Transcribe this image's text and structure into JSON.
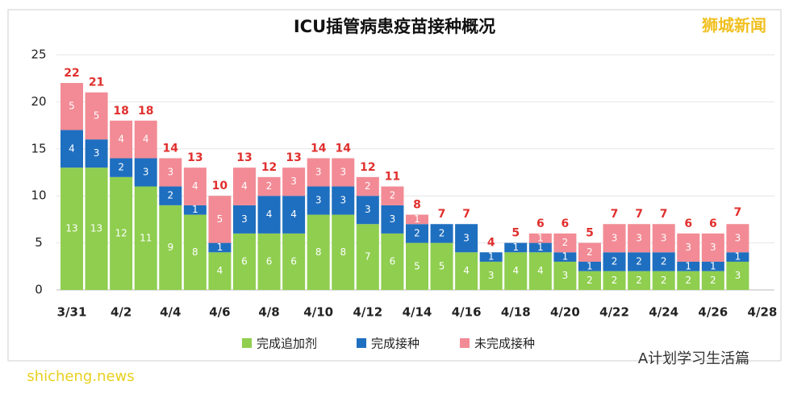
{
  "chart_data": {
    "type": "stacked-bar",
    "title": "ICU插管病患疫苗接种概况",
    "watermark": "狮城新闻",
    "footer_left": "shicheng.news",
    "footer_right": "A计划学习生活篇",
    "categories": [
      "3/31",
      null,
      "4/2",
      null,
      "4/4",
      null,
      "4/6",
      null,
      "4/8",
      null,
      "4/10",
      null,
      "4/12",
      null,
      "4/14",
      null,
      "4/16",
      null,
      "4/18",
      null,
      "4/20",
      null,
      "4/22",
      null,
      "4/24",
      null,
      "4/26",
      null,
      "4/28"
    ],
    "series": [
      {
        "name": "完成追加剂",
        "color": "#8fce4f",
        "values": [
          13,
          13,
          12,
          11,
          9,
          8,
          4,
          6,
          6,
          6,
          8,
          8,
          7,
          6,
          5,
          5,
          4,
          3,
          4,
          4,
          3,
          2,
          2,
          2,
          2,
          2,
          2,
          3,
          null
        ]
      },
      {
        "name": "完成接种",
        "color": "#1f6fc0",
        "values": [
          4,
          3,
          2,
          3,
          2,
          1,
          1,
          3,
          4,
          4,
          3,
          3,
          3,
          3,
          2,
          2,
          3,
          1,
          1,
          1,
          1,
          1,
          2,
          2,
          2,
          1,
          1,
          1,
          null
        ]
      },
      {
        "name": "未完成接种",
        "color": "#f28b95",
        "values": [
          5,
          5,
          4,
          4,
          3,
          4,
          5,
          4,
          2,
          3,
          3,
          3,
          2,
          2,
          1,
          0,
          0,
          0,
          0,
          1,
          2,
          2,
          3,
          3,
          3,
          3,
          3,
          3,
          null
        ]
      }
    ],
    "totals": [
      22,
      21,
      18,
      18,
      14,
      13,
      10,
      13,
      12,
      13,
      14,
      14,
      12,
      11,
      8,
      7,
      7,
      4,
      5,
      6,
      6,
      5,
      7,
      7,
      7,
      6,
      6,
      7,
      null
    ],
    "ylim": [
      0,
      25
    ],
    "yticks": [
      0,
      5,
      10,
      15,
      20,
      25
    ],
    "grid": true
  }
}
